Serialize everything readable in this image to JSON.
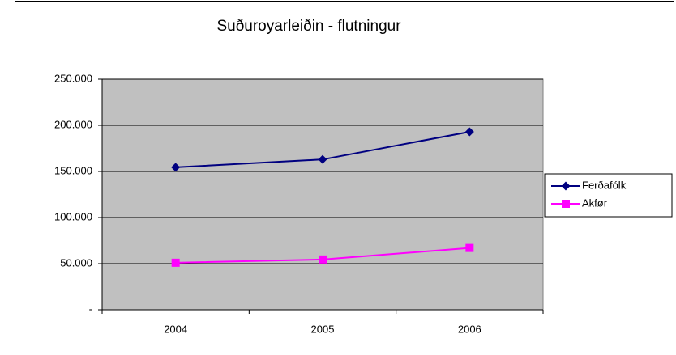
{
  "chart_data": {
    "type": "line",
    "title": "Suðuroyarleiðin - flutningur",
    "categories": [
      "2004",
      "2005",
      "2006"
    ],
    "series": [
      {
        "name": "Ferðafólk",
        "color": "#000080",
        "marker": "diamond",
        "values": [
          154500,
          163000,
          193000
        ]
      },
      {
        "name": "Akfør",
        "color": "#ff00ff",
        "marker": "square",
        "values": [
          51000,
          54500,
          67000
        ]
      }
    ],
    "ylim": [
      0,
      250000
    ],
    "yticks": [
      {
        "value": 0,
        "label": "-"
      },
      {
        "value": 50000,
        "label": "50.000"
      },
      {
        "value": 100000,
        "label": "100.000"
      },
      {
        "value": 150000,
        "label": "150.000"
      },
      {
        "value": 200000,
        "label": "200.000"
      },
      {
        "value": 250000,
        "label": "250.000"
      }
    ],
    "grid": true,
    "legend": "right",
    "plot_background": "#c0c0c0"
  }
}
